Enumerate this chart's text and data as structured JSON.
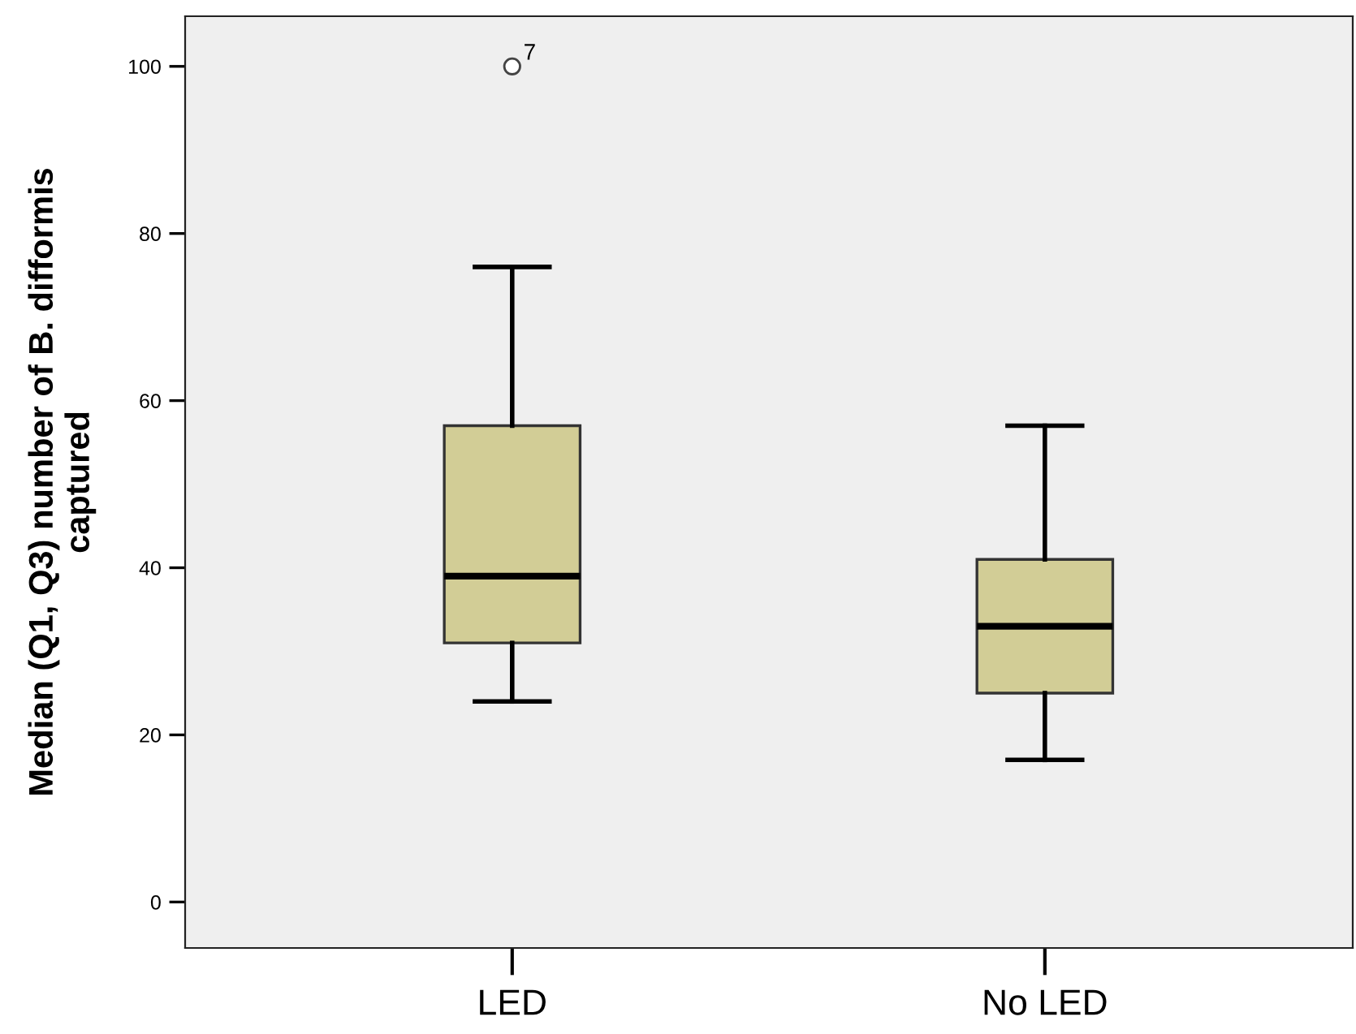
{
  "chart_data": {
    "type": "box",
    "ylabel": "Median (Q1, Q3) number of B. difformis\ncaptured",
    "categories": [
      "LED",
      "No LED"
    ],
    "boxes": [
      {
        "low": 24,
        "q1": 31,
        "median": 39,
        "q3": 57,
        "high": 76,
        "outliers": [
          100
        ]
      },
      {
        "low": 17,
        "q1": 25,
        "median": 33,
        "q3": 41,
        "high": 57
      }
    ],
    "color": "#d2cd96",
    "annotations": [
      "7"
    ],
    "ylim": [
      -5.5,
      106
    ],
    "yticks": [
      0,
      20,
      40,
      60,
      80,
      100
    ],
    "grid": false
  }
}
